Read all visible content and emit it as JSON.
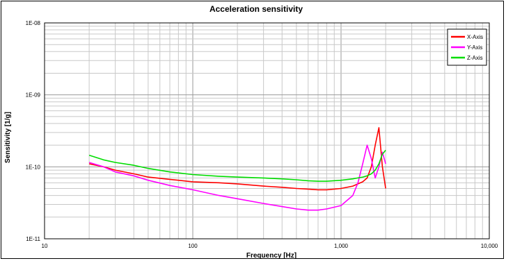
{
  "chart_data": {
    "type": "line",
    "title": "Acceleration sensitivity",
    "xlabel": "Frequency [Hz]",
    "ylabel": "Sensitivity [1/g]",
    "x_scale": "log",
    "y_scale": "log",
    "xlim": [
      10,
      10000
    ],
    "ylim": [
      1e-11,
      1e-08
    ],
    "x_ticks": [
      10,
      100,
      1000,
      10000
    ],
    "x_tick_labels": [
      "10",
      "100",
      "1,000",
      "10,000"
    ],
    "y_ticks": [
      1e-11,
      1e-10,
      1e-09,
      1e-08
    ],
    "y_tick_labels": [
      "1E-11",
      "1E-10",
      "1E-09",
      "1E-08"
    ],
    "grid": true,
    "legend_position": "top-right",
    "series": [
      {
        "name": "X-Axis",
        "color": "#ff0000",
        "x": [
          20,
          25,
          30,
          40,
          50,
          70,
          100,
          150,
          200,
          300,
          400,
          500,
          600,
          700,
          800,
          1000,
          1200,
          1400,
          1500,
          1600,
          1700,
          1800,
          1900,
          2000
        ],
        "y": [
          1.1e-10,
          1e-10,
          9e-11,
          8e-11,
          7.2e-11,
          6.7e-11,
          6.2e-11,
          6e-11,
          5.8e-11,
          5.4e-11,
          5.2e-11,
          5e-11,
          4.9e-11,
          4.8e-11,
          4.8e-11,
          5e-11,
          5.4e-11,
          6.2e-11,
          7e-11,
          1e-10,
          2e-10,
          3.5e-10,
          1e-10,
          5e-11
        ]
      },
      {
        "name": "Y-Axis",
        "color": "#ff00ff",
        "x": [
          20,
          25,
          30,
          40,
          50,
          70,
          100,
          150,
          200,
          300,
          400,
          500,
          600,
          700,
          800,
          1000,
          1200,
          1300,
          1400,
          1500,
          1600,
          1700,
          1800,
          1900,
          2000
        ],
        "y": [
          1.15e-10,
          1e-10,
          8.5e-11,
          7.5e-11,
          6.5e-11,
          5.5e-11,
          4.8e-11,
          4e-11,
          3.6e-11,
          3.1e-11,
          2.8e-11,
          2.6e-11,
          2.5e-11,
          2.5e-11,
          2.6e-11,
          2.9e-11,
          4e-11,
          6e-11,
          1.1e-10,
          2e-10,
          1.3e-10,
          7e-11,
          1e-10,
          1.6e-10,
          1.1e-10
        ]
      },
      {
        "name": "Z-Axis",
        "color": "#00dd00",
        "x": [
          20,
          25,
          30,
          40,
          50,
          70,
          100,
          150,
          200,
          300,
          400,
          500,
          600,
          700,
          800,
          1000,
          1200,
          1400,
          1500,
          1600,
          1700,
          1800,
          1900,
          2000
        ],
        "y": [
          1.45e-10,
          1.25e-10,
          1.15e-10,
          1.05e-10,
          9.5e-11,
          8.5e-11,
          7.8e-11,
          7.4e-11,
          7.2e-11,
          7e-11,
          6.8e-11,
          6.6e-11,
          6.4e-11,
          6.3e-11,
          6.3e-11,
          6.5e-11,
          6.8e-11,
          7.2e-11,
          7.5e-11,
          8e-11,
          9e-11,
          1.1e-10,
          1.5e-10,
          1.7e-10
        ]
      }
    ]
  }
}
